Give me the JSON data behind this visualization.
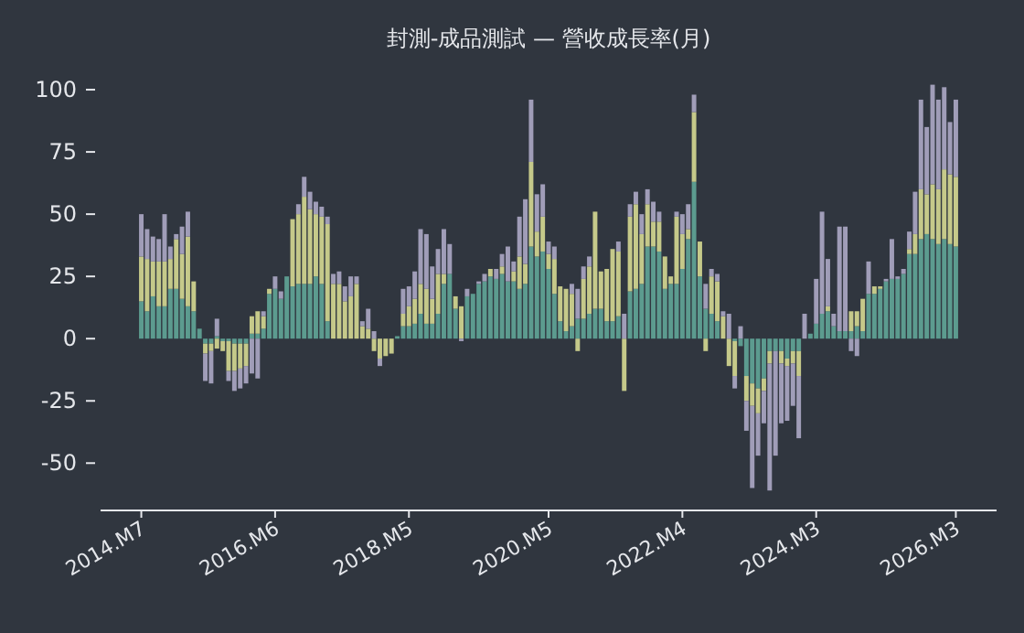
{
  "chart_data": {
    "type": "bar",
    "stacked": true,
    "title": "封測-成品測試 — 營收成長率(月)",
    "x": [
      "2014-07",
      "2014-08",
      "2014-09",
      "2014-10",
      "2014-11",
      "2014-12",
      "2015-01",
      "2015-02",
      "2015-03",
      "2015-04",
      "2015-05",
      "2015-06",
      "2015-07",
      "2015-08",
      "2015-09",
      "2015-10",
      "2015-11",
      "2015-12",
      "2016-01",
      "2016-02",
      "2016-03",
      "2016-04",
      "2016-05",
      "2016-06",
      "2016-07",
      "2016-08",
      "2016-09",
      "2016-10",
      "2016-11",
      "2016-12",
      "2017-01",
      "2017-02",
      "2017-03",
      "2017-04",
      "2017-05",
      "2017-06",
      "2017-07",
      "2017-08",
      "2017-09",
      "2017-10",
      "2017-11",
      "2017-12",
      "2018-01",
      "2018-02",
      "2018-03",
      "2018-04",
      "2018-05",
      "2018-06",
      "2018-07",
      "2018-08",
      "2018-09",
      "2018-10",
      "2018-11",
      "2018-12",
      "2019-01",
      "2019-02",
      "2019-03",
      "2019-04",
      "2019-05",
      "2019-06",
      "2019-07",
      "2019-08",
      "2019-09",
      "2019-10",
      "2019-11",
      "2019-12",
      "2020-01",
      "2020-02",
      "2020-03",
      "2020-04",
      "2020-05",
      "2020-06",
      "2020-07",
      "2020-08",
      "2020-09",
      "2020-10",
      "2020-11",
      "2020-12",
      "2021-01",
      "2021-02",
      "2021-03",
      "2021-04",
      "2021-05",
      "2021-06",
      "2021-07",
      "2021-08",
      "2021-09",
      "2021-10",
      "2021-11",
      "2021-12",
      "2022-01",
      "2022-02",
      "2022-03",
      "2022-04",
      "2022-05",
      "2022-06",
      "2022-07",
      "2022-08",
      "2022-09",
      "2022-10",
      "2022-11",
      "2022-12",
      "2023-01",
      "2023-02",
      "2023-03",
      "2023-04",
      "2023-05",
      "2023-06",
      "2023-07",
      "2023-08",
      "2023-09",
      "2023-10",
      "2023-11",
      "2023-12",
      "2024-01",
      "2024-02",
      "2024-03",
      "2024-04",
      "2024-05",
      "2024-06",
      "2024-07",
      "2024-08",
      "2024-09",
      "2024-10",
      "2024-11",
      "2024-12",
      "2025-01",
      "2025-02",
      "2025-03",
      "2025-04",
      "2025-05",
      "2025-06",
      "2025-07",
      "2025-08",
      "2025-09",
      "2025-10",
      "2025-11",
      "2025-12",
      "2026-01",
      "2026-02",
      "2026-03"
    ],
    "series": [
      {
        "color": "#5c9b8f",
        "values": [
          15,
          11,
          17,
          13,
          13,
          20,
          20,
          16,
          13,
          11,
          4,
          -2,
          -2,
          1,
          -1,
          -1,
          -2,
          -2,
          -2,
          2,
          2,
          4,
          18,
          20,
          16,
          25,
          21,
          22,
          22,
          22,
          25,
          22,
          7,
          0,
          0,
          0,
          0,
          0,
          0,
          0,
          0,
          0,
          0,
          0,
          1,
          5,
          5,
          6,
          10,
          6,
          6,
          10,
          22,
          26,
          12,
          0,
          17,
          18,
          22,
          23,
          25,
          24,
          26,
          23,
          23,
          20,
          22,
          37,
          33,
          35,
          28,
          18,
          7,
          3,
          5,
          8,
          8,
          10,
          12,
          12,
          7,
          7,
          9,
          0,
          19,
          20,
          22,
          37,
          37,
          35,
          20,
          22,
          22,
          28,
          40,
          63,
          25,
          12,
          10,
          7,
          0,
          0,
          -1,
          -3,
          -15,
          -18,
          -20,
          -16,
          -5,
          -5,
          -5,
          -8,
          -5,
          -5,
          0,
          2,
          6,
          10,
          11,
          5,
          3,
          3,
          3,
          5,
          3,
          18,
          18,
          20,
          23,
          24,
          24,
          26,
          34,
          34,
          40,
          42,
          40,
          38,
          40,
          38,
          37
        ]
      },
      {
        "color": "#c5c98a",
        "values": [
          18,
          21,
          14,
          18,
          18,
          12,
          20,
          18,
          28,
          12,
          0,
          -4,
          -3,
          -4,
          -4,
          -12,
          -11,
          -10,
          -9,
          7,
          9,
          5,
          2,
          0,
          0,
          0,
          27,
          28,
          35,
          30,
          25,
          27,
          39,
          22,
          22,
          15,
          17,
          22,
          5,
          4,
          -5,
          -8,
          -7,
          -6,
          0,
          5,
          8,
          10,
          12,
          14,
          10,
          16,
          4,
          0,
          5,
          13,
          0,
          0,
          0,
          0,
          3,
          0,
          3,
          0,
          4,
          13,
          8,
          34,
          10,
          14,
          6,
          14,
          14,
          17,
          13,
          -5,
          16,
          19,
          39,
          15,
          21,
          29,
          26,
          -21,
          30,
          34,
          20,
          17,
          10,
          12,
          13,
          3,
          27,
          14,
          4,
          28,
          14,
          -5,
          15,
          16,
          9,
          -11,
          -14,
          0,
          -10,
          -9,
          -10,
          -5,
          -5,
          0,
          -5,
          -3,
          -5,
          -10,
          0,
          0,
          0,
          0,
          2,
          0,
          0,
          0,
          8,
          6,
          13,
          0,
          3,
          1,
          0,
          0,
          0,
          0,
          2,
          8,
          20,
          16,
          22,
          22,
          28,
          28,
          28
        ]
      },
      {
        "color": "#a09db8",
        "values": [
          17,
          12,
          10,
          9,
          19,
          5,
          2,
          11,
          10,
          0,
          0,
          -11,
          -13,
          7,
          0,
          -4,
          -8,
          -8,
          -7,
          -14,
          -16,
          2,
          0,
          5,
          3,
          0,
          0,
          4,
          8,
          7,
          5,
          4,
          3,
          4,
          5,
          6,
          8,
          3,
          2,
          8,
          3,
          -3,
          0,
          0,
          0,
          10,
          8,
          11,
          22,
          22,
          13,
          10,
          18,
          12,
          0,
          -1,
          3,
          0,
          1,
          3,
          0,
          4,
          5,
          14,
          4,
          16,
          26,
          25,
          15,
          13,
          5,
          5,
          0,
          0,
          4,
          12,
          5,
          4,
          0,
          0,
          0,
          0,
          4,
          10,
          5,
          5,
          8,
          6,
          8,
          4,
          0,
          0,
          2,
          8,
          10,
          7,
          0,
          10,
          3,
          3,
          2,
          10,
          -5,
          5,
          -12,
          -33,
          -17,
          -13,
          -51,
          -42,
          -24,
          -22,
          -17,
          -25,
          10,
          0,
          18,
          41,
          19,
          5,
          42,
          42,
          -5,
          -7,
          0,
          13,
          0,
          0,
          1,
          16,
          1,
          2,
          7,
          17,
          36,
          27,
          40,
          36,
          33,
          21,
          31
        ]
      }
    ],
    "xlim": [
      "2013-12",
      "2026-10"
    ],
    "xticks": [
      {
        "value": "2014-07",
        "label": "2014.M7"
      },
      {
        "value": "2016-06",
        "label": "2016.M6"
      },
      {
        "value": "2018-05",
        "label": "2018.M5"
      },
      {
        "value": "2020-05",
        "label": "2020.M5"
      },
      {
        "value": "2022-04",
        "label": "2022.M4"
      },
      {
        "value": "2024-03",
        "label": "2024.M3"
      },
      {
        "value": "2026-03",
        "label": "2026.M3"
      }
    ],
    "ylim": [
      -69,
      102
    ],
    "yticks": [
      -50,
      -25,
      0,
      25,
      50,
      75,
      100
    ],
    "grid": false
  }
}
